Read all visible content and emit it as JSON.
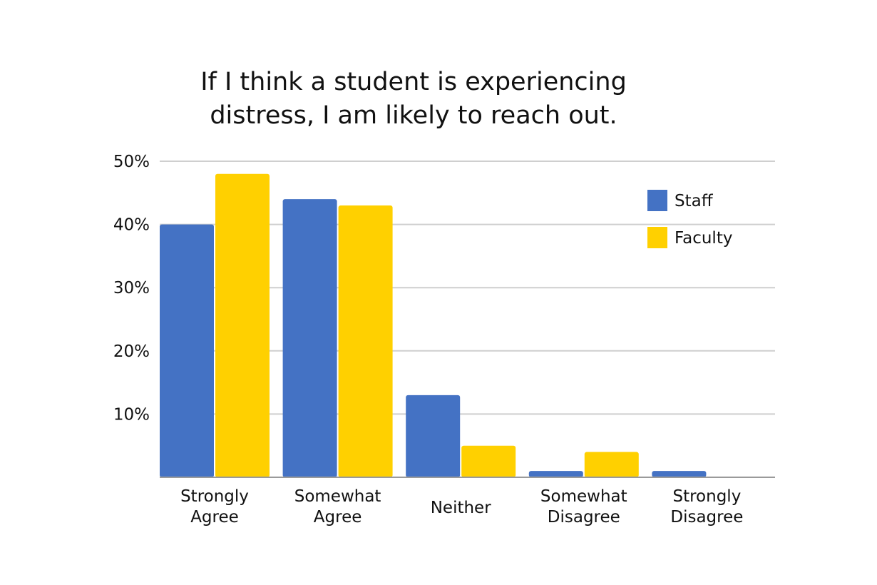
{
  "chart_data": {
    "type": "bar",
    "title_lines": [
      "If I think a student is experiencing",
      "distress, I am likely to reach out."
    ],
    "categories": [
      [
        "Strongly",
        "Agree"
      ],
      [
        "Somewhat",
        "Agree"
      ],
      [
        "Neither"
      ],
      [
        "Somewhat",
        "Disagree"
      ],
      [
        "Strongly",
        "Disagree"
      ]
    ],
    "series": [
      {
        "name": "Staff",
        "color": "#4472C4",
        "values": [
          40,
          44,
          13,
          1,
          1
        ]
      },
      {
        "name": "Faculty",
        "color": "#FFD000",
        "values": [
          48,
          43,
          5,
          4,
          0
        ]
      }
    ],
    "y_ticks": [
      {
        "value": 10,
        "label": "10%"
      },
      {
        "value": 20,
        "label": "20%"
      },
      {
        "value": 30,
        "label": "30%"
      },
      {
        "value": 40,
        "label": "40%"
      },
      {
        "value": 50,
        "label": "50%"
      }
    ],
    "ylim": [
      0,
      50
    ],
    "grid": true,
    "legend_position": "top-right"
  }
}
